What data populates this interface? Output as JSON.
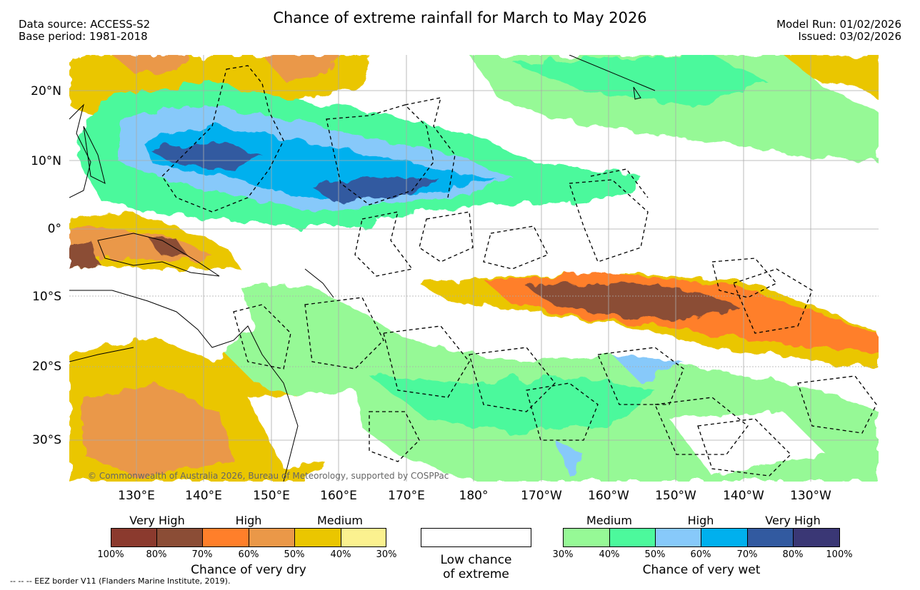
{
  "header": {
    "title": "Chance of extreme rainfall for March to May 2026",
    "data_source": "Data source: ACCESS-S2",
    "base_period": "Base period: 1981-2018",
    "model_run": "Model Run: 01/02/2026",
    "issued": "Issued: 03/02/2026"
  },
  "map": {
    "copyright": "© Commonwealth of Australia 2026, Bureau of Meteorology, supported by COSPPac",
    "lat_labels": [
      "20°N",
      "10°N",
      "0°",
      "10°S",
      "20°S",
      "30°S"
    ],
    "lon_labels": [
      "130°E",
      "140°E",
      "150°E",
      "160°E",
      "170°E",
      "180°",
      "170°W",
      "160°W",
      "150°W",
      "140°W",
      "130°W"
    ]
  },
  "legend": {
    "dry": {
      "headers": [
        "Very High",
        "High",
        "Medium"
      ],
      "ticks": [
        "100%",
        "80%",
        "70%",
        "60%",
        "50%",
        "40%",
        "30%"
      ],
      "colors": [
        "#8b3a2e",
        "#8b4d36",
        "#ff7f2a",
        "#ea9848",
        "#eac600",
        "#fbf18f"
      ],
      "title": "Chance of very dry"
    },
    "neutral": {
      "label_line1": "Low chance",
      "label_line2": "of extreme",
      "color": "#ffffff"
    },
    "wet": {
      "headers": [
        "Medium",
        "High",
        "Very High"
      ],
      "ticks": [
        "30%",
        "40%",
        "50%",
        "60%",
        "70%",
        "80%",
        "100%"
      ],
      "colors": [
        "#96f996",
        "#4cf99c",
        "#87c9fa",
        "#00b0ee",
        "#325aa0",
        "#3a3775"
      ],
      "title": "Chance of very wet"
    }
  },
  "footnote": "--  --  -- EEZ border V11 (Flanders Marine Institute, 2019)."
}
